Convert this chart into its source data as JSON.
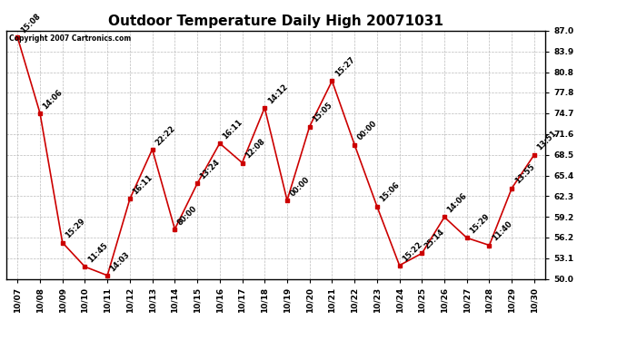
{
  "title": "Outdoor Temperature Daily High 20071031",
  "copyright_text": "Copyright 2007 Cartronics.com",
  "x_labels": [
    "10/07",
    "10/08",
    "10/09",
    "10/10",
    "10/11",
    "10/12",
    "10/13",
    "10/14",
    "10/15",
    "10/16",
    "10/17",
    "10/18",
    "10/19",
    "10/20",
    "10/21",
    "10/22",
    "10/23",
    "10/24",
    "10/25",
    "10/26",
    "10/27",
    "10/28",
    "10/29",
    "10/30"
  ],
  "y_values": [
    86.0,
    74.7,
    55.4,
    51.8,
    50.5,
    61.9,
    69.3,
    57.4,
    64.2,
    70.2,
    67.3,
    75.5,
    61.7,
    72.7,
    79.5,
    70.0,
    60.8,
    52.0,
    53.8,
    59.2,
    56.1,
    55.0,
    63.5,
    68.5
  ],
  "point_labels": [
    "15:08",
    "14:06",
    "15:29",
    "11:45",
    "14:03",
    "16:11",
    "22:22",
    "80:00",
    "13:24",
    "16:11",
    "12:08",
    "14:12",
    "00:00",
    "15:05",
    "15:27",
    "00:00",
    "15:06",
    "15:22",
    "25:14",
    "14:06",
    "15:29",
    "11:40",
    "13:55",
    "13:51"
  ],
  "line_color": "#cc0000",
  "marker_color": "#cc0000",
  "bg_color": "#ffffff",
  "grid_color": "#aaaaaa",
  "ylim": [
    50.0,
    87.0
  ],
  "yticks": [
    50.0,
    53.1,
    56.2,
    59.2,
    62.3,
    65.4,
    68.5,
    71.6,
    74.7,
    77.8,
    80.8,
    83.9,
    87.0
  ],
  "title_fontsize": 11,
  "label_fontsize": 6.5,
  "annot_fontsize": 6.0
}
